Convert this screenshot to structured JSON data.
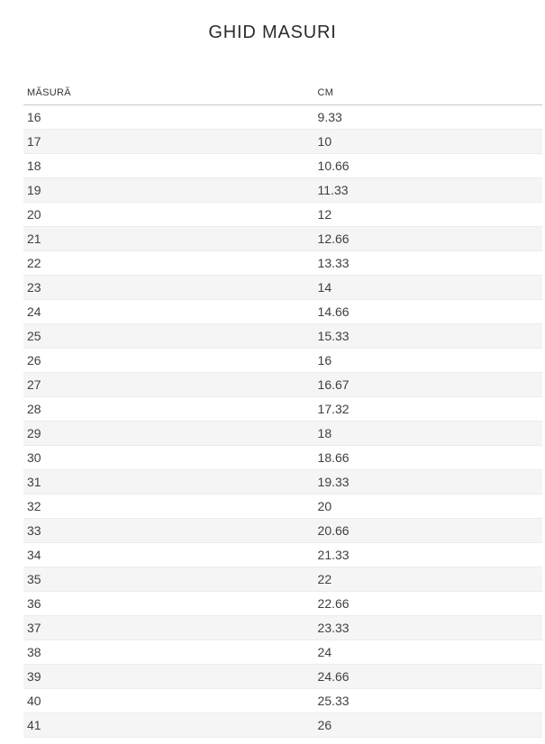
{
  "page": {
    "title": "GHID MASURI"
  },
  "table": {
    "columns": [
      "MĂSURĂ",
      "CM"
    ],
    "rows": [
      [
        "16",
        "9.33"
      ],
      [
        "17",
        "10"
      ],
      [
        "18",
        "10.66"
      ],
      [
        "19",
        "11.33"
      ],
      [
        "20",
        "12"
      ],
      [
        "21",
        "12.66"
      ],
      [
        "22",
        "13.33"
      ],
      [
        "23",
        "14"
      ],
      [
        "24",
        "14.66"
      ],
      [
        "25",
        "15.33"
      ],
      [
        "26",
        "16"
      ],
      [
        "27",
        "16.67"
      ],
      [
        "28",
        "17.32"
      ],
      [
        "29",
        "18"
      ],
      [
        "30",
        "18.66"
      ],
      [
        "31",
        "19.33"
      ],
      [
        "32",
        "20"
      ],
      [
        "33",
        "20.66"
      ],
      [
        "34",
        "21.33"
      ],
      [
        "35",
        "22"
      ],
      [
        "36",
        "22.66"
      ],
      [
        "37",
        "23.33"
      ],
      [
        "38",
        "24"
      ],
      [
        "39",
        "24.66"
      ],
      [
        "40",
        "25.33"
      ],
      [
        "41",
        "26"
      ]
    ]
  },
  "colors": {
    "background": "#ffffff",
    "title_text": "#2b2b2b",
    "header_text": "#333333",
    "cell_text": "#3f3f3f",
    "stripe": "#f5f5f5",
    "row_border": "#ececec",
    "header_border": "#c8c8c8"
  }
}
